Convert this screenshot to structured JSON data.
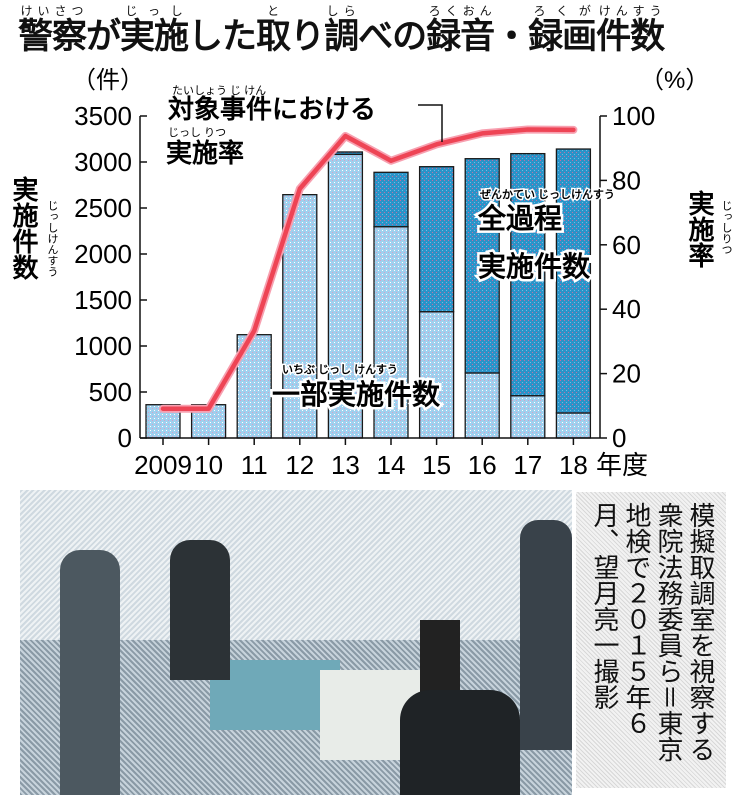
{
  "title": [
    {
      "text": "警察",
      "ruby": "けいさつ"
    },
    {
      "text": "が"
    },
    {
      "text": "実施",
      "ruby": "じっし"
    },
    {
      "text": "した"
    },
    {
      "text": "取",
      "ruby": "と"
    },
    {
      "text": "り"
    },
    {
      "text": "調",
      "ruby": "しら"
    },
    {
      "text": "べの"
    },
    {
      "text": "録音",
      "ruby": "ろくおん"
    },
    {
      "text": "・"
    },
    {
      "text": "録画",
      "ruby": "ろくが"
    },
    {
      "text": "件数",
      "ruby": "けんすう"
    }
  ],
  "chart_data": {
    "type": "bar",
    "categories": [
      "2009",
      "10",
      "11",
      "12",
      "13",
      "14",
      "15",
      "16",
      "17",
      "18"
    ],
    "x_unit": "年度",
    "series": [
      {
        "name": "一部実施件数",
        "ruby": "いちぶ じっし けんすう",
        "values": [
          362,
          362,
          1123,
          2645,
          3083,
          2297,
          1373,
          707,
          460,
          272
        ],
        "color": "#8fc9ec"
      },
      {
        "name": "全過程実施件数",
        "ruby": "ぜんかてい じっしけんすう",
        "values": [
          0,
          0,
          0,
          0,
          26,
          591,
          1576,
          2329,
          2631,
          2869
        ],
        "color": "#2f95c9"
      }
    ],
    "line_series": {
      "name": "対象事件における実施率",
      "name_line1": "対象事件における",
      "name_line1_ruby": "たいしょう じ けん",
      "name_line2": "実施率",
      "name_line2_ruby": "じっし りつ",
      "values": [
        9.1,
        9.1,
        33.3,
        77.4,
        93.8,
        86.1,
        91.2,
        94.6,
        95.8,
        95.7
      ],
      "color": "#ee4455"
    },
    "y_left": {
      "unit": "（件）",
      "label": "実施件数",
      "ruby": "じっしけんすう",
      "range": [
        0,
        3500
      ],
      "ticks": [
        0,
        500,
        1000,
        1500,
        2000,
        2500,
        3000,
        3500
      ]
    },
    "y_right": {
      "unit": "（%）",
      "label": "実施率",
      "ruby": "じっしりつ",
      "range": [
        0,
        100
      ],
      "ticks": [
        0,
        20,
        40,
        60,
        80,
        100
      ]
    },
    "grid": false
  },
  "photo": {
    "caption": "模擬取調室を視察する衆院法務委員ら＝東京地検で２０１５年６月、望月亮一撮影"
  }
}
